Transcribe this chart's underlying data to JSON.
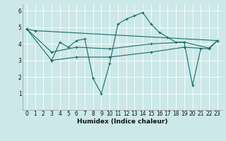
{
  "xlabel": "Humidex (Indice chaleur)",
  "bg_color": "#cce8e8",
  "line_color": "#1a6b6b",
  "grid_color": "#ffffff",
  "xlim": [
    -0.5,
    23.5
  ],
  "ylim": [
    0,
    6.4
  ],
  "yticks": [
    1,
    2,
    3,
    4,
    5,
    6
  ],
  "xticks": [
    0,
    1,
    2,
    3,
    4,
    5,
    6,
    7,
    8,
    9,
    10,
    11,
    12,
    13,
    14,
    15,
    16,
    17,
    18,
    19,
    20,
    21,
    22,
    23
  ],
  "line1": {
    "x": [
      0,
      1,
      23
    ],
    "y": [
      4.9,
      4.8,
      4.2
    ]
  },
  "line2": {
    "x": [
      3,
      4,
      5,
      6,
      7,
      8,
      9,
      10,
      11,
      12,
      13,
      14,
      15,
      16,
      17,
      18,
      19,
      20,
      21
    ],
    "y": [
      3.0,
      4.1,
      3.8,
      4.2,
      4.3,
      1.9,
      1.0,
      2.8,
      5.2,
      5.5,
      5.7,
      5.9,
      5.2,
      4.7,
      4.4,
      4.1,
      4.1,
      1.5,
      3.7
    ]
  },
  "line3": {
    "x": [
      0,
      3,
      6,
      10,
      15,
      19,
      22,
      23
    ],
    "y": [
      4.9,
      3.5,
      3.8,
      3.7,
      4.0,
      4.1,
      3.75,
      4.2
    ]
  },
  "line4": {
    "x": [
      0,
      3,
      6,
      10,
      15,
      19,
      22,
      23
    ],
    "y": [
      4.9,
      3.0,
      3.2,
      3.2,
      3.5,
      3.8,
      3.7,
      4.2
    ]
  }
}
